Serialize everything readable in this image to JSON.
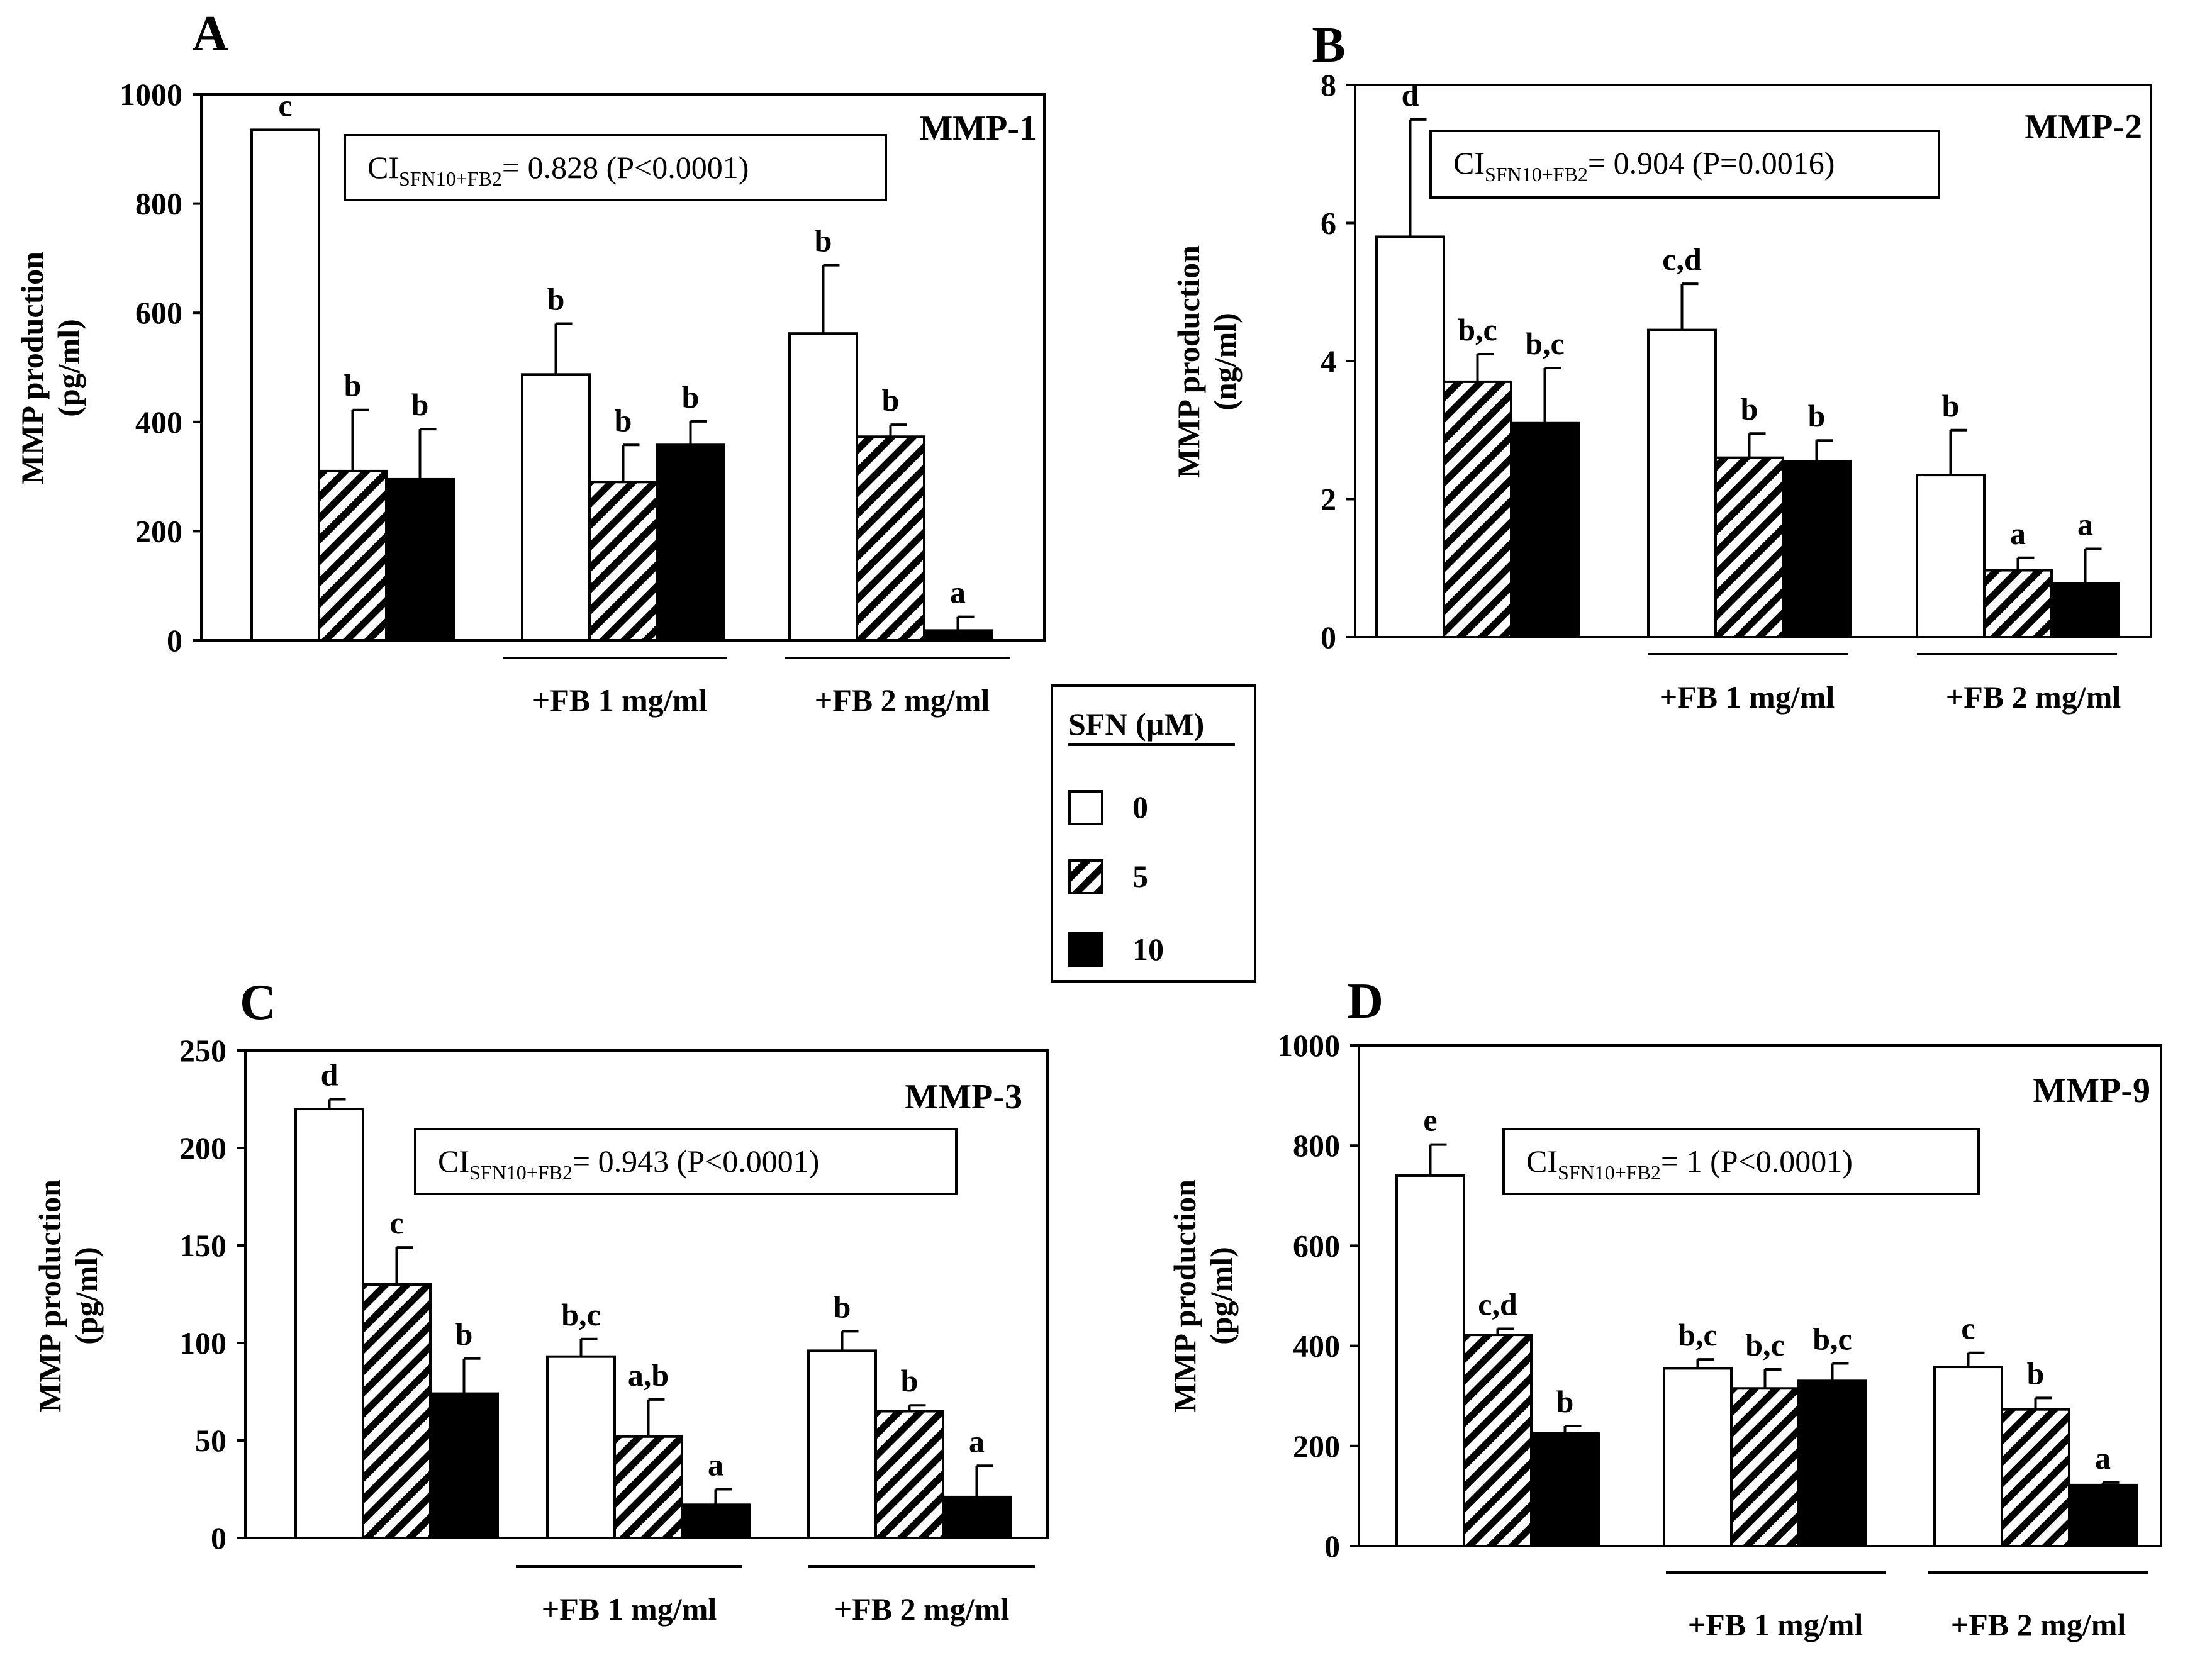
{
  "legend": {
    "title": "SFN (µM)",
    "entries": [
      {
        "label": "0",
        "style": "open"
      },
      {
        "label": "5",
        "style": "hatched"
      },
      {
        "label": "10",
        "style": "solid"
      }
    ]
  },
  "colors": {
    "bar_open": "#ffffff",
    "bar_solid": "#000000",
    "ink": "#000000"
  },
  "chart_data": [
    {
      "panel": "A",
      "type": "bar",
      "title": "MMP-1",
      "ylabel_line1": "MMP production",
      "ylabel_line2": "(pg/ml)",
      "ylim": [
        0,
        1000
      ],
      "yticks": [
        0,
        200,
        400,
        600,
        800,
        1000
      ],
      "group_labels": [
        "",
        "+FB 1 mg/ml",
        "+FB 2 mg/ml"
      ],
      "series_names": [
        "0",
        "5",
        "10"
      ],
      "ci_main": "CI",
      "ci_sub": "SFN10+FB2",
      "ci_rest": "= 0.828  (P<0.0001)",
      "groups": [
        {
          "values": [
            935,
            310,
            295
          ],
          "errors": [
            0,
            112,
            92
          ],
          "letters": [
            "c",
            "b",
            "b"
          ]
        },
        {
          "values": [
            487,
            290,
            358
          ],
          "errors": [
            93,
            68,
            43
          ],
          "letters": [
            "b",
            "b",
            "b"
          ]
        },
        {
          "values": [
            562,
            373,
            18
          ],
          "errors": [
            125,
            22,
            25
          ],
          "letters": [
            "b",
            "b",
            "a"
          ]
        }
      ]
    },
    {
      "panel": "B",
      "type": "bar",
      "title": "MMP-2",
      "ylabel_line1": "MMP production",
      "ylabel_line2": "(ng/ml)",
      "ylim": [
        0,
        8
      ],
      "yticks": [
        0,
        2,
        4,
        6,
        8
      ],
      "group_labels": [
        "",
        "+FB 1 mg/ml",
        "+FB 2 mg/ml"
      ],
      "series_names": [
        "0",
        "5",
        "10"
      ],
      "ci_main": "CI",
      "ci_sub": "SFN10+FB2",
      "ci_rest": "= 0.904  (P=0.0016)",
      "groups": [
        {
          "values": [
            5.8,
            3.7,
            3.1
          ],
          "errors": [
            1.7,
            0.4,
            0.8
          ],
          "letters": [
            "d",
            "b,c",
            "b,c"
          ]
        },
        {
          "values": [
            4.45,
            2.6,
            2.55
          ],
          "errors": [
            0.67,
            0.35,
            0.3
          ],
          "letters": [
            "c,d",
            "b",
            "b"
          ]
        },
        {
          "values": [
            2.35,
            0.97,
            0.78
          ],
          "errors": [
            0.65,
            0.18,
            0.5
          ],
          "letters": [
            "b",
            "a",
            "a"
          ]
        }
      ]
    },
    {
      "panel": "C",
      "type": "bar",
      "title": "MMP-3",
      "ylabel_line1": "MMP production",
      "ylabel_line2": "(pg/ml)",
      "ylim": [
        0,
        250
      ],
      "yticks": [
        0,
        50,
        100,
        150,
        200,
        250
      ],
      "group_labels": [
        "",
        "+FB 1 mg/ml",
        "+FB 2 mg/ml"
      ],
      "series_names": [
        "0",
        "5",
        "10"
      ],
      "ci_main": "CI",
      "ci_sub": "SFN10+FB2",
      "ci_rest": "= 0.943  (P<0.0001)",
      "groups": [
        {
          "values": [
            220,
            130,
            74
          ],
          "errors": [
            5,
            19,
            18
          ],
          "letters": [
            "d",
            "c",
            "b"
          ]
        },
        {
          "values": [
            93,
            52,
            17
          ],
          "errors": [
            9,
            19,
            8
          ],
          "letters": [
            "b,c",
            "a,b",
            "a"
          ]
        },
        {
          "values": [
            96,
            65,
            21
          ],
          "errors": [
            10,
            3,
            16
          ],
          "letters": [
            "b",
            "b",
            "a"
          ]
        }
      ]
    },
    {
      "panel": "D",
      "type": "bar",
      "title": "MMP-9",
      "ylabel_line1": "MMP production",
      "ylabel_line2": "(pg/ml)",
      "ylim": [
        0,
        1000
      ],
      "yticks": [
        0,
        200,
        400,
        600,
        800,
        1000
      ],
      "group_labels": [
        "",
        "+FB 1 mg/ml",
        "+FB 2 mg/ml"
      ],
      "series_names": [
        "0",
        "5",
        "10"
      ],
      "ci_main": "CI",
      "ci_sub": "SFN10+FB2",
      "ci_rest": "= 1  (P<0.0001)",
      "groups": [
        {
          "values": [
            740,
            422,
            225
          ],
          "errors": [
            62,
            12,
            15
          ],
          "letters": [
            "e",
            "c,d",
            "b"
          ]
        },
        {
          "values": [
            355,
            315,
            330
          ],
          "errors": [
            18,
            38,
            35
          ],
          "letters": [
            "b,c",
            "b,c",
            "b,c"
          ]
        },
        {
          "values": [
            358,
            273,
            122
          ],
          "errors": [
            28,
            23,
            5
          ],
          "letters": [
            "c",
            "b",
            "a"
          ]
        }
      ]
    }
  ]
}
